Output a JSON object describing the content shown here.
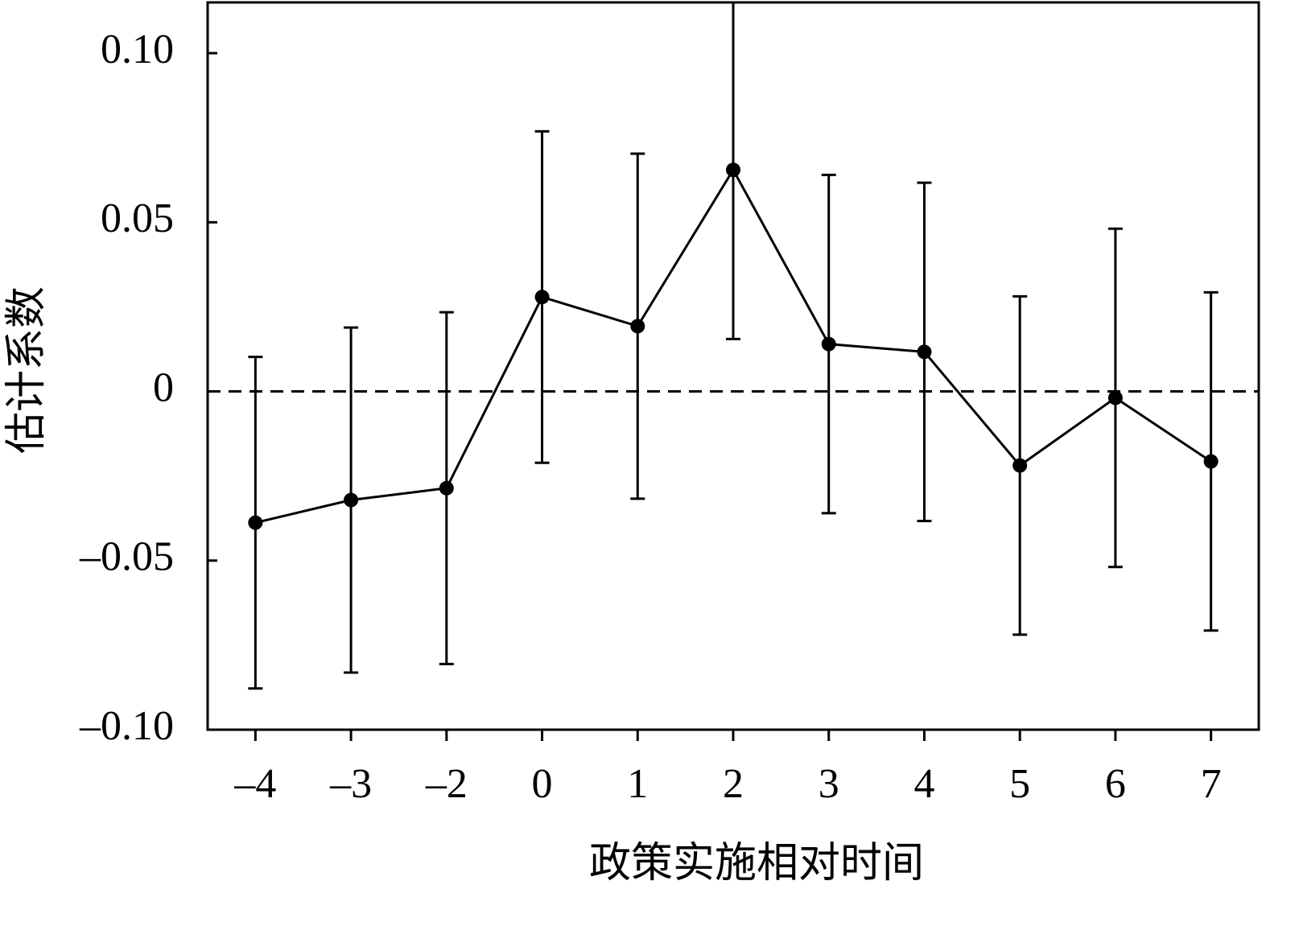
{
  "chart_data": {
    "type": "errorbar",
    "x_label": "政策实施相对时间",
    "y_label": "估计系数",
    "categories": [
      "–4",
      "–3",
      "–2",
      "0",
      "1",
      "2",
      "3",
      "4",
      "5",
      "6",
      "7"
    ],
    "values": [
      -0.0388,
      -0.0321,
      -0.0286,
      0.0279,
      0.0193,
      0.0655,
      0.014,
      0.0117,
      -0.0219,
      -0.0019,
      -0.0207
    ],
    "errors": [
      0.049,
      0.051,
      0.052,
      0.049,
      0.051,
      0.05,
      0.05,
      0.05,
      0.05,
      0.05,
      0.05
    ],
    "color": "#000000",
    "ylim": [
      -0.1,
      0.115
    ],
    "yticks": [
      {
        "value": -0.1,
        "label": "–0.10"
      },
      {
        "value": -0.05,
        "label": "–0.05"
      },
      0,
      0.05,
      {
        "value": 0.1,
        "label": "0.10"
      }
    ],
    "zero_line": "dashed"
  }
}
